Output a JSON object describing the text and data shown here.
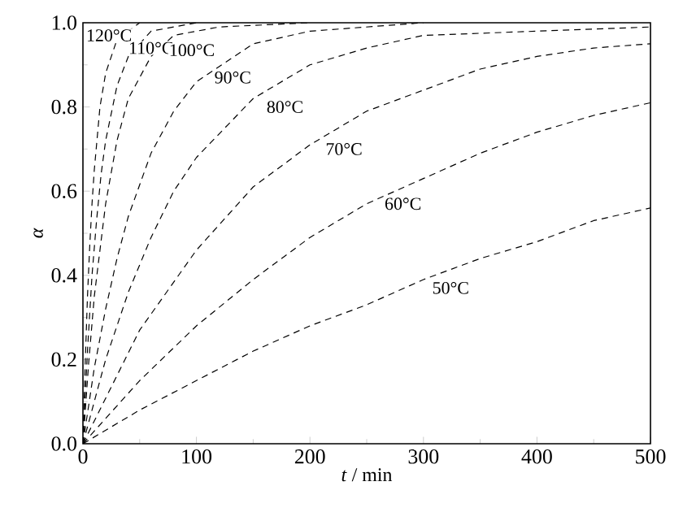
{
  "chart_data": {
    "type": "line",
    "xlabel": "*t* / min",
    "ylabel": "α",
    "xlim": [
      0,
      500
    ],
    "ylim": [
      0,
      1.0
    ],
    "xticks": [
      0,
      100,
      200,
      300,
      400,
      500
    ],
    "yticks": [
      {
        "value": 0,
        "label": "0.0"
      },
      {
        "value": 0.2,
        "label": "0.2"
      },
      {
        "value": 0.4,
        "label": "0.4"
      },
      {
        "value": 0.6,
        "label": "0.6"
      },
      {
        "value": 0.8,
        "label": "0.8"
      },
      {
        "value": 1.0,
        "label": "1.0"
      }
    ],
    "line_style": "dashed",
    "marker": "none",
    "grid": false,
    "series": [
      {
        "name": "120°C",
        "color": "#000000",
        "x": [
          0,
          2,
          4,
          6,
          8,
          10,
          15,
          20,
          30,
          50
        ],
        "values": [
          0,
          0.19,
          0.35,
          0.47,
          0.57,
          0.65,
          0.8,
          0.88,
          0.96,
          1.0
        ]
      },
      {
        "name": "110°C",
        "color": "#000000",
        "x": [
          0,
          4,
          8,
          12,
          16,
          20,
          30,
          40,
          60,
          100
        ],
        "values": [
          0,
          0.22,
          0.4,
          0.53,
          0.64,
          0.72,
          0.85,
          0.92,
          0.98,
          1.0
        ]
      },
      {
        "name": "100°C",
        "color": "#000000",
        "x": [
          0,
          5,
          10,
          20,
          30,
          40,
          60,
          80,
          120,
          200
        ],
        "values": [
          0,
          0.19,
          0.35,
          0.57,
          0.72,
          0.82,
          0.92,
          0.97,
          0.99,
          1.0
        ]
      },
      {
        "name": "90°C",
        "color": "#000000",
        "x": [
          0,
          10,
          20,
          30,
          40,
          60,
          80,
          100,
          150,
          200,
          300
        ],
        "values": [
          0,
          0.18,
          0.32,
          0.44,
          0.54,
          0.69,
          0.79,
          0.86,
          0.95,
          0.98,
          1.0
        ]
      },
      {
        "name": "80°C",
        "color": "#000000",
        "x": [
          0,
          20,
          40,
          60,
          80,
          100,
          150,
          200,
          250,
          300,
          400,
          500
        ],
        "values": [
          0,
          0.2,
          0.36,
          0.49,
          0.6,
          0.68,
          0.82,
          0.9,
          0.94,
          0.97,
          0.98,
          0.99
        ]
      },
      {
        "name": "70°C",
        "color": "#000000",
        "x": [
          0,
          50,
          100,
          150,
          200,
          250,
          300,
          350,
          400,
          450,
          500
        ],
        "values": [
          0,
          0.27,
          0.46,
          0.61,
          0.71,
          0.79,
          0.84,
          0.89,
          0.92,
          0.94,
          0.95
        ]
      },
      {
        "name": "60°C",
        "color": "#000000",
        "x": [
          0,
          50,
          100,
          150,
          200,
          250,
          300,
          350,
          400,
          450,
          500
        ],
        "values": [
          0,
          0.15,
          0.28,
          0.39,
          0.49,
          0.57,
          0.63,
          0.69,
          0.74,
          0.78,
          0.81
        ]
      },
      {
        "name": "50°C",
        "color": "#000000",
        "x": [
          0,
          50,
          100,
          150,
          200,
          250,
          300,
          350,
          400,
          450,
          500
        ],
        "values": [
          0,
          0.08,
          0.15,
          0.22,
          0.28,
          0.33,
          0.39,
          0.44,
          0.48,
          0.53,
          0.56
        ]
      }
    ]
  }
}
